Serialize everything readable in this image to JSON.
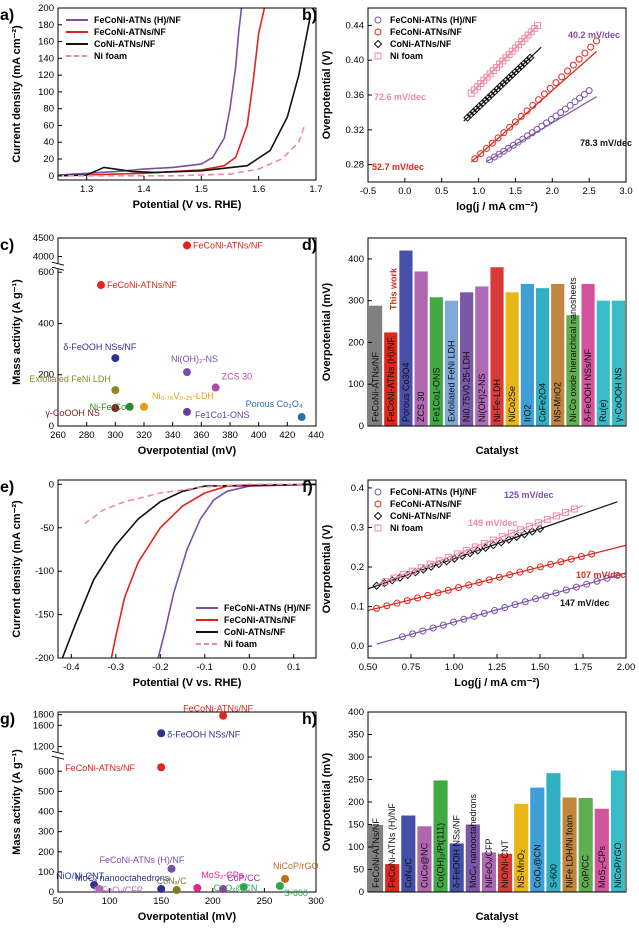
{
  "panels": [
    {
      "id": "a",
      "label": "a)",
      "chart_data": {
        "type": "line",
        "xlabel": "Potential (V vs. RHE)",
        "ylabel": "Current density (mA cm⁻²)",
        "xlim": [
          1.25,
          1.7
        ],
        "ylim": [
          -5,
          200
        ],
        "xticks": [
          1.3,
          1.4,
          1.5,
          1.6,
          1.7
        ],
        "yticks": [
          0,
          20,
          40,
          60,
          80,
          100,
          120,
          140,
          160,
          180,
          200
        ],
        "legend_position": "top-left",
        "series": [
          {
            "name": "FeCoNi-ATNs (H)/NF",
            "color": "#7b4fa8",
            "dash": false,
            "x": [
              1.25,
              1.3,
              1.35,
              1.4,
              1.45,
              1.5,
              1.52,
              1.54,
              1.55,
              1.56,
              1.565,
              1.57
            ],
            "y": [
              1,
              3,
              5,
              8,
              10,
              14,
              22,
              45,
              80,
              130,
              170,
              200
            ]
          },
          {
            "name": "FeCoNi-ATNs/NF",
            "color": "#e0251b",
            "dash": false,
            "x": [
              1.25,
              1.3,
              1.35,
              1.4,
              1.45,
              1.5,
              1.54,
              1.56,
              1.58,
              1.59,
              1.6,
              1.61
            ],
            "y": [
              0,
              1,
              2,
              3,
              5,
              7,
              12,
              22,
              60,
              110,
              170,
              200
            ]
          },
          {
            "name": "CoNi-ATNs/NF",
            "color": "#111111",
            "dash": false,
            "x": [
              1.25,
              1.3,
              1.33,
              1.35,
              1.38,
              1.42,
              1.5,
              1.58,
              1.62,
              1.65,
              1.67,
              1.69
            ],
            "y": [
              0,
              1,
              10,
              8,
              5,
              4,
              6,
              12,
              30,
              70,
              120,
              190
            ]
          },
          {
            "name": "Ni foam",
            "color": "#f08aa0",
            "dash": true,
            "x": [
              1.25,
              1.35,
              1.45,
              1.55,
              1.6,
              1.64,
              1.67,
              1.68
            ],
            "y": [
              0,
              0,
              0,
              2,
              8,
              20,
              40,
              60
            ]
          }
        ]
      }
    },
    {
      "id": "b",
      "label": "b)",
      "chart_data": {
        "type": "scatter",
        "xlabel": "log(j / mA cm⁻²)",
        "ylabel": "Overpotential (V)",
        "xlim": [
          -0.5,
          3.0
        ],
        "ylim": [
          0.26,
          0.46
        ],
        "xticks": [
          -0.5,
          0.0,
          0.5,
          1.0,
          1.5,
          2.0,
          2.5,
          3.0
        ],
        "yticks": [
          0.28,
          0.32,
          0.36,
          0.4,
          0.44
        ],
        "legend_position": "top-left",
        "series": [
          {
            "name": "FeCoNi-ATNs (H)/NF",
            "color": "#7b4fa8",
            "marker": "circle",
            "slope_label": "40.2 mV/dec",
            "fit": [
              [
                1.1,
                0.283
              ],
              [
                2.6,
                0.358
              ]
            ],
            "x_range": [
              1.15,
              2.5
            ]
          },
          {
            "name": "FeCoNi-ATNs/NF",
            "color": "#e0251b",
            "marker": "circle",
            "slope_label": "52.7 mV/dec",
            "fit": [
              [
                0.9,
                0.283
              ],
              [
                2.6,
                0.41
              ]
            ],
            "x_range": [
              0.95,
              2.6
            ]
          },
          {
            "name": "CoNi-ATNs/NF",
            "color": "#111111",
            "marker": "diamond",
            "slope_label": "78.3 mV/dec",
            "fit": [
              [
                0.8,
                0.33
              ],
              [
                1.85,
                0.415
              ]
            ],
            "x_range": [
              0.85,
              1.7
            ]
          },
          {
            "name": "Ni foam",
            "color": "#f08aa0",
            "marker": "square",
            "slope_label": "72.6 mV/dec",
            "fit": [
              [
                0.9,
                0.362
              ],
              [
                1.8,
                0.44
              ]
            ],
            "x_range": [
              0.9,
              1.8
            ]
          }
        ]
      }
    },
    {
      "id": "c",
      "label": "c)",
      "chart_data": {
        "type": "scatter",
        "xlabel": "Overpotential (mV)",
        "ylabel": "Mass activity (A g⁻¹)",
        "xlim": [
          260,
          440
        ],
        "xticks": [
          260,
          280,
          300,
          320,
          340,
          360,
          380,
          400,
          420,
          440
        ],
        "ylim_lower": [
          0,
          600
        ],
        "ylim_upper": [
          3900,
          4500
        ],
        "yticks_lower": [
          0,
          200,
          400,
          600
        ],
        "yticks_upper": [
          4000,
          4500
        ],
        "points": [
          {
            "label": "FeCoNi-ATNs/NF",
            "x": 350,
            "y": 4300,
            "color": "#e0251b"
          },
          {
            "label": "FeCoNi-ATNs/NF",
            "x": 290,
            "y": 550,
            "color": "#e0251b"
          },
          {
            "label": "δ-FeOOH NSs/NF",
            "x": 300,
            "y": 265,
            "color": "#2e3192"
          },
          {
            "label": "Ni(OH)₂-NS",
            "x": 350,
            "y": 210,
            "color": "#7b4fa8"
          },
          {
            "label": "Exfoliated FeNi LDH",
            "x": 300,
            "y": 140,
            "color": "#8a8a1e"
          },
          {
            "label": "ZCS 30",
            "x": 370,
            "y": 150,
            "color": "#b04aa6"
          },
          {
            "label": "Ni-Fe-Co",
            "x": 310,
            "y": 75,
            "color": "#2a8a2a"
          },
          {
            "label": "Ni₀.₇₅V₀.₂₅-LDH",
            "x": 320,
            "y": 75,
            "color": "#e89a14"
          },
          {
            "label": "γ-CoOOH NS",
            "x": 300,
            "y": 70,
            "color": "#8b1a1a"
          },
          {
            "label": "Fe1Co1-ONS",
            "x": 350,
            "y": 55,
            "color": "#6b3fa0"
          },
          {
            "label": "Porous Co₃O₄",
            "x": 430,
            "y": 35,
            "color": "#2e6bb0"
          }
        ]
      }
    },
    {
      "id": "d",
      "label": "d)",
      "chart_data": {
        "type": "bar",
        "xlabel": "Catalyst",
        "ylabel": "Overpotential (mV)",
        "ylim": [
          0,
          450
        ],
        "yticks": [
          0,
          100,
          200,
          300,
          400
        ],
        "categories": [
          "FeCoNi-ATNs/NF",
          "FeCoNi-ATNs (H)/NF",
          "Porous Co3O4",
          "ZCS 30",
          "Fe1Co1-ONS",
          "Exfoliated FeNi LDH",
          "Ni0.75V0.25-LDH",
          "Ni(OH)2-NS",
          "Ni-Fe-LDH",
          "NiCo2Se",
          "IrO2",
          "CoFe2O4",
          "NS-MnO2",
          "Ni-Co oxide hierarchical nanosheets",
          "δ-FeOOH NSs/NF",
          "Ru(e)",
          "γ-CoOOH NS"
        ],
        "values": [
          288,
          224,
          420,
          370,
          308,
          300,
          320,
          334,
          380,
          320,
          340,
          330,
          340,
          265,
          340,
          300,
          300
        ],
        "colors": [
          "#808080",
          "#e0251b",
          "#4650a8",
          "#b067b0",
          "#41a941",
          "#7fa9d9",
          "#7b57a8",
          "#b06ab5",
          "#d93a3a",
          "#e7b814",
          "#3f9ed6",
          "#30b0c2",
          "#c0853f",
          "#5fae4f",
          "#d2549e",
          "#37bcc8",
          "#37bcc8"
        ],
        "annotation": "This work"
      }
    },
    {
      "id": "e",
      "label": "e)",
      "chart_data": {
        "type": "line",
        "xlabel": "Potential (V vs. RHE)",
        "ylabel": "Current density (mA cm⁻²)",
        "xlim": [
          -0.43,
          0.15
        ],
        "ylim": [
          -200,
          5
        ],
        "xticks": [
          -0.4,
          -0.3,
          -0.2,
          -0.1,
          0.0,
          0.1
        ],
        "yticks": [
          0,
          -50,
          -100,
          -150,
          -200
        ],
        "legend_position": "bottom-right",
        "series": [
          {
            "name": "FeCoNi-ATNs (H)/NF",
            "color": "#7b4fa8",
            "dash": false,
            "x": [
              0.15,
              0.0,
              -0.05,
              -0.08,
              -0.11,
              -0.14,
              -0.17,
              -0.19,
              -0.205
            ],
            "y": [
              0,
              -2,
              -8,
              -18,
              -40,
              -75,
              -125,
              -170,
              -200
            ]
          },
          {
            "name": "FeCoNi-ATNs/NF",
            "color": "#e0251b",
            "dash": false,
            "x": [
              0.15,
              -0.05,
              -0.1,
              -0.15,
              -0.2,
              -0.25,
              -0.28,
              -0.3,
              -0.31
            ],
            "y": [
              0,
              -2,
              -10,
              -25,
              -50,
              -90,
              -130,
              -175,
              -200
            ]
          },
          {
            "name": "CoNi-ATNs/NF",
            "color": "#111111",
            "dash": false,
            "x": [
              0.15,
              -0.1,
              -0.15,
              -0.2,
              -0.25,
              -0.3,
              -0.35,
              -0.39,
              -0.42
            ],
            "y": [
              0,
              -2,
              -8,
              -20,
              -40,
              -70,
              -110,
              -160,
              -200
            ]
          },
          {
            "name": "Ni foam",
            "color": "#f08aa0",
            "dash": true,
            "x": [
              0.12,
              0.0,
              -0.1,
              -0.2,
              -0.28,
              -0.33,
              -0.35,
              -0.37
            ],
            "y": [
              0,
              0,
              -3,
              -10,
              -20,
              -30,
              -38,
              -45
            ]
          }
        ]
      }
    },
    {
      "id": "f",
      "label": "f)",
      "chart_data": {
        "type": "scatter",
        "xlabel": "Log(j / mA cm⁻²)",
        "ylabel": "Overpotential (V)",
        "xlim": [
          0.5,
          2.0
        ],
        "ylim": [
          -0.03,
          0.42
        ],
        "xticks": [
          0.5,
          0.75,
          1.0,
          1.25,
          1.5,
          1.75,
          2.0
        ],
        "yticks": [
          0.0,
          0.1,
          0.2,
          0.3,
          0.4
        ],
        "legend_position": "top-left",
        "series": [
          {
            "name": "FeCoNi-ATNs (H)/NF",
            "color": "#7b4fa8",
            "marker": "circle",
            "slope_label": "125 mV/dec",
            "fit": [
              [
                0.55,
                0.005
              ],
              [
                2.0,
                0.185
              ]
            ],
            "x_range": [
              0.7,
              1.95
            ]
          },
          {
            "name": "FeCoNi-ATNs/NF",
            "color": "#e0251b",
            "marker": "circle",
            "slope_label": "107 mV/dec",
            "fit": [
              [
                0.5,
                0.09
              ],
              [
                2.0,
                0.255
              ]
            ],
            "x_range": [
              0.55,
              1.8
            ]
          },
          {
            "name": "CoNi-ATNs/NF",
            "color": "#111111",
            "marker": "diamond",
            "slope_label": "147 mV/dec",
            "fit": [
              [
                0.5,
                0.145
              ],
              [
                1.95,
                0.365
              ]
            ],
            "x_range": [
              0.55,
              1.5
            ]
          },
          {
            "name": "Ni foam",
            "color": "#f08aa0",
            "marker": "square",
            "slope_label": "149 mV/dec",
            "fit": [
              [
                0.55,
                0.155
              ],
              [
                1.75,
                0.355
              ]
            ],
            "x_range": [
              0.6,
              1.7
            ]
          }
        ]
      }
    },
    {
      "id": "g",
      "label": "g)",
      "chart_data": {
        "type": "scatter",
        "xlabel": "Overpotential (mV)",
        "ylabel": "Mass activity (A g⁻¹)",
        "xlim": [
          50,
          300
        ],
        "xticks": [
          50,
          100,
          150,
          200,
          250,
          300
        ],
        "ylim_lower": [
          0,
          650
        ],
        "ylim_upper": [
          1150,
          1850
        ],
        "yticks_lower": [
          0,
          100,
          200,
          300,
          400,
          500,
          600
        ],
        "yticks_upper": [
          1200,
          1600,
          1800
        ],
        "points": [
          {
            "label": "FeCoNi-ATNs/NF",
            "x": 210,
            "y": 1780,
            "color": "#e0251b"
          },
          {
            "label": "δ-FeOOH NSs/NF",
            "x": 150,
            "y": 1450,
            "color": "#2e3192"
          },
          {
            "label": "FeCoNi-ATNs/NF",
            "x": 150,
            "y": 620,
            "color": "#e0251b"
          },
          {
            "label": "FeCoNi-ATNs (H)/NF",
            "x": 160,
            "y": 115,
            "color": "#7b4fa8"
          },
          {
            "label": "MoS₂-CPs",
            "x": 185,
            "y": 20,
            "color": "#e0248a"
          },
          {
            "label": "MoCₓ nanooctahedrons",
            "x": 150,
            "y": 15,
            "color": "#2e3192"
          },
          {
            "label": "NiO/Ni-CNT",
            "x": 85,
            "y": 35,
            "color": "#2e3192"
          },
          {
            "label": "NiFeOₓ/CFP",
            "x": 90,
            "y": 15,
            "color": "#b36ab5"
          },
          {
            "label": "CoNₓ/C",
            "x": 165,
            "y": 10,
            "color": "#7b7b2a"
          },
          {
            "label": "CoP/CC",
            "x": 210,
            "y": 15,
            "color": "#9b2ab0"
          },
          {
            "label": "CoOₓ@CN",
            "x": 230,
            "y": 25,
            "color": "#2aa84a"
          },
          {
            "label": "NiCoP/rGO",
            "x": 270,
            "y": 65,
            "color": "#c26a1a"
          },
          {
            "label": "S-600",
            "x": 265,
            "y": 30,
            "color": "#2aa84a"
          }
        ]
      }
    },
    {
      "id": "h",
      "label": "h)",
      "chart_data": {
        "type": "bar",
        "xlabel": "Catalyst",
        "ylabel": "Overpotential (mV)",
        "ylim": [
          0,
          400
        ],
        "yticks": [
          0,
          50,
          100,
          150,
          200,
          250,
          300,
          350,
          400
        ],
        "categories": [
          "FeCoNi-ATNs/NF",
          "FeCoNi-ATNs (H)/NF",
          "CoNₓ/C",
          "CuCo@NC",
          "Co(OH)₂/Pt(111)",
          "δ-FeOOH NSs/NF",
          "MoCₓ nanooctahedrons",
          "NiFeOₓ/CFP",
          "NiO/Ni-CNT",
          "NS-MnO₂",
          "CoOₓ@CN",
          "S-600",
          "NiFe LDH/Ni foam",
          "CoP/CC",
          "MoS₂-CPs",
          "NiCoP/rGO"
        ],
        "values": [
          149,
          62,
          170,
          146,
          248,
          108,
          150,
          88,
          85,
          196,
          232,
          264,
          210,
          209,
          185,
          270
        ],
        "colors": [
          "#808080",
          "#e0251b",
          "#4650a8",
          "#b067b0",
          "#41a941",
          "#4650a8",
          "#7b57a8",
          "#b06ab5",
          "#d93a3a",
          "#e7b814",
          "#3f9ed6",
          "#30b0c2",
          "#c0853f",
          "#5fae4f",
          "#d2549e",
          "#37bcc8"
        ]
      }
    }
  ]
}
